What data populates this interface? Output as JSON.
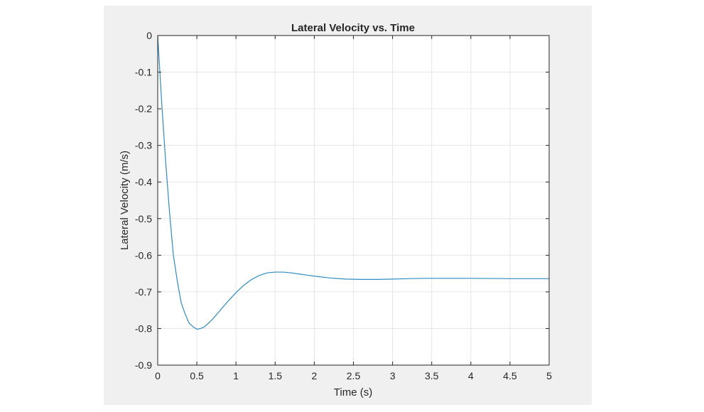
{
  "chart_data": {
    "type": "line",
    "title": "Lateral Velocity vs. Time",
    "xlabel": "Time (s)",
    "ylabel": "Lateral Velocity (m/s)",
    "xlim": [
      0,
      5
    ],
    "ylim": [
      -0.9,
      0
    ],
    "xticks": [
      0,
      0.5,
      1,
      1.5,
      2,
      2.5,
      3,
      3.5,
      4,
      4.5,
      5
    ],
    "xtick_labels": [
      "0",
      "0.5",
      "1",
      "1.5",
      "2",
      "2.5",
      "3",
      "3.5",
      "4",
      "4.5",
      "5"
    ],
    "yticks": [
      0,
      -0.1,
      -0.2,
      -0.3,
      -0.4,
      -0.5,
      -0.6,
      -0.7,
      -0.8,
      -0.9
    ],
    "ytick_labels": [
      "0",
      "-0.1",
      "-0.2",
      "-0.3",
      "-0.4",
      "-0.5",
      "-0.6",
      "-0.7",
      "-0.8",
      "-0.9"
    ],
    "grid": true,
    "series": [
      {
        "color": "#2f8cc0",
        "x": [
          0,
          0.05,
          0.1,
          0.15,
          0.2,
          0.25,
          0.3,
          0.35,
          0.4,
          0.45,
          0.5,
          0.55,
          0.6,
          0.7,
          0.8,
          0.9,
          1.0,
          1.1,
          1.2,
          1.3,
          1.4,
          1.5,
          1.6,
          1.7,
          1.8,
          1.9,
          2.0,
          2.2,
          2.4,
          2.6,
          2.8,
          3.0,
          3.2,
          3.4,
          3.6,
          3.8,
          4.0,
          4.5,
          5.0
        ],
        "y": [
          0,
          -0.18,
          -0.34,
          -0.48,
          -0.6,
          -0.67,
          -0.73,
          -0.76,
          -0.785,
          -0.795,
          -0.802,
          -0.8,
          -0.795,
          -0.775,
          -0.75,
          -0.725,
          -0.702,
          -0.682,
          -0.666,
          -0.655,
          -0.648,
          -0.646,
          -0.646,
          -0.648,
          -0.651,
          -0.654,
          -0.657,
          -0.662,
          -0.665,
          -0.666,
          -0.666,
          -0.665,
          -0.664,
          -0.663,
          -0.663,
          -0.663,
          -0.663,
          -0.664,
          -0.664
        ]
      }
    ]
  }
}
